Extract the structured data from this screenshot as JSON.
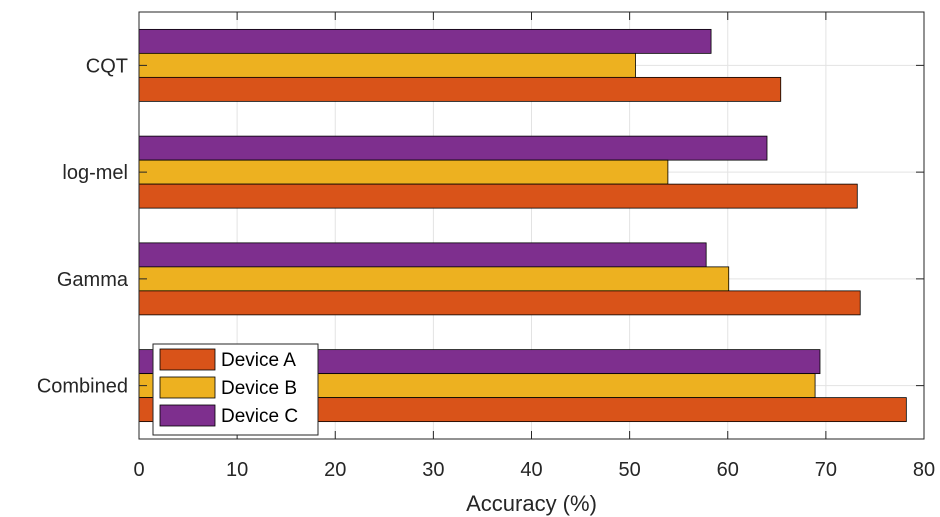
{
  "chart_data": {
    "type": "bar",
    "orientation": "horizontal",
    "categories": [
      "CQT",
      "log-mel",
      "Gamma",
      "Combined"
    ],
    "series": [
      {
        "name": "Device A",
        "color": "#D95319",
        "values": [
          65.4,
          73.2,
          73.5,
          78.2
        ]
      },
      {
        "name": "Device B",
        "color": "#EDB120",
        "values": [
          50.6,
          53.9,
          60.1,
          68.9
        ]
      },
      {
        "name": "Device C",
        "color": "#7E2F8E",
        "values": [
          58.3,
          64.0,
          57.8,
          69.4
        ]
      }
    ],
    "xlabel": "Accuracy (%)",
    "ylabel": "",
    "xlim": [
      0,
      80
    ],
    "xticks": [
      "0",
      "10",
      "20",
      "30",
      "40",
      "50",
      "60",
      "70",
      "80"
    ],
    "grid": true,
    "legend_position": "bottom-left"
  }
}
